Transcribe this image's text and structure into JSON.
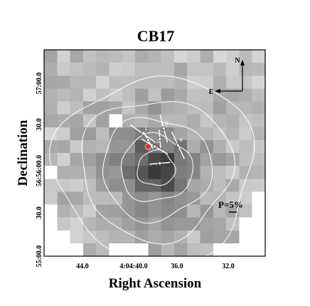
{
  "chart_data": {
    "type": "heatmap",
    "title": "CB17",
    "xlabel": "Right Ascension",
    "ylabel": "Declination",
    "x_ticks": [
      "44.0",
      "4:04:40.0",
      "36.0",
      "32.0"
    ],
    "y_ticks": [
      "55:00.0",
      "30.0",
      "56:56:00.0",
      "30.0",
      "57:00.0"
    ],
    "compass": {
      "north": "N",
      "east": "E"
    },
    "scale_bar": {
      "label": "P=5%"
    },
    "contour_levels": 5,
    "grid_cols": 17,
    "grid_rows": 16,
    "center_col": 8.6,
    "center_row": 9.2,
    "vectors": [
      {
        "id": "1",
        "label": "1",
        "col": 7.6,
        "row": 6.5,
        "angle": 145,
        "length": 2.4
      },
      {
        "id": "2",
        "label": "",
        "col": 8.0,
        "row": 7.0,
        "angle": 120,
        "length": 1.5
      },
      {
        "id": "3",
        "label": "3",
        "col": 8.5,
        "row": 7.5,
        "angle": 150,
        "length": 2.3
      },
      {
        "id": "4",
        "label": "",
        "col": 8.9,
        "row": 6.9,
        "angle": 95,
        "length": 1.4
      },
      {
        "id": "5",
        "label": "5",
        "col": 9.2,
        "row": 6.1,
        "angle": 105,
        "length": 2.2
      },
      {
        "id": "6",
        "label": "6",
        "col": 10.3,
        "row": 7.4,
        "angle": 115,
        "length": 2.3
      },
      {
        "id": "7",
        "label": "",
        "col": 8.9,
        "row": 8.8,
        "angle": 5,
        "length": 1.6
      }
    ],
    "source_marker": {
      "col": 8.0,
      "row": 7.5,
      "color": "#e8282d"
    },
    "colors": {
      "grid_white": "#ffffff",
      "vector": "#ffffff",
      "contour": "#ffffff"
    }
  }
}
